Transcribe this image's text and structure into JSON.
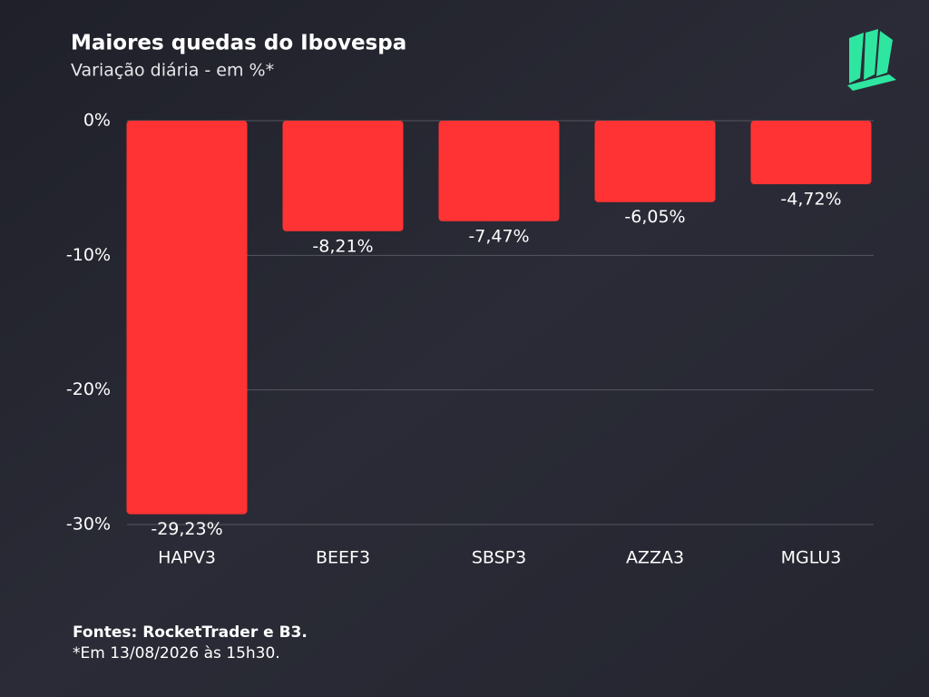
{
  "chart_data": {
    "type": "bar",
    "title": "Maiores quedas do Ibovespa",
    "subtitle": "Variação diária - em %*",
    "categories": [
      "HAPV3",
      "BEEF3",
      "SBSP3",
      "AZZA3",
      "MGLU3"
    ],
    "values": [
      -29.23,
      -8.21,
      -7.47,
      -6.05,
      -4.72
    ],
    "value_labels": [
      "-29,23%",
      "-8,21%",
      "-7,47%",
      "-6,05%",
      "-4,72%"
    ],
    "color": "#ff3333",
    "ylim": [
      -30,
      0
    ],
    "yticks": [
      {
        "value": 0,
        "label": "0%"
      },
      {
        "value": -10,
        "label": "-10%"
      },
      {
        "value": -20,
        "label": "-20%"
      },
      {
        "value": -30,
        "label": "-30%"
      }
    ],
    "grid": true,
    "source": "Fontes: RocketTrader e B3.",
    "note": "*Em 13/08/2026 às 15h30."
  }
}
